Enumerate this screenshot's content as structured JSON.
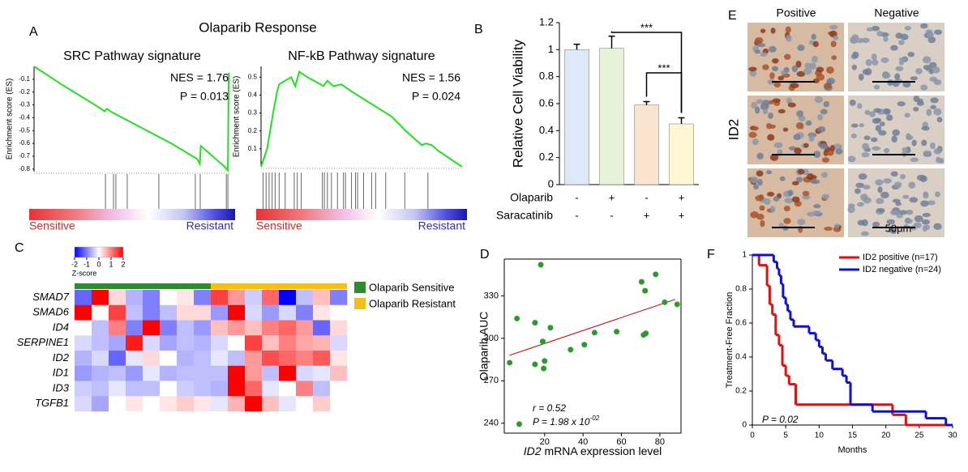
{
  "title": "Olaparib Response",
  "chart_data": [
    {
      "type": "gsea",
      "panel": "A",
      "title": "SRC Pathway signature",
      "ylabel": "Enrichment score (ES)",
      "x": [
        0,
        3,
        15,
        30,
        36,
        37,
        40,
        55,
        70,
        83,
        84.5,
        85,
        97,
        98.8,
        99.2
      ],
      "values": [
        0,
        -0.03,
        -0.15,
        -0.29,
        -0.35,
        -0.33,
        -0.36,
        -0.48,
        -0.6,
        -0.72,
        -0.76,
        -0.62,
        -0.78,
        -0.81,
        -0.05
      ],
      "xlim": [
        0,
        100
      ],
      "ylim": [
        -0.82,
        0
      ],
      "yticks": [
        -0.1,
        -0.2,
        -0.3,
        -0.4,
        -0.5,
        -0.6,
        -0.7,
        -0.8
      ],
      "hits": [
        36.4,
        40.5,
        41.7,
        47.5,
        63.6,
        82.2,
        84.7,
        98,
        98.8
      ],
      "color": "#22e022",
      "annotations": [
        "NES = 1.76",
        "P = 0.013"
      ],
      "gradient_labels": [
        "Sensitive",
        "Resistant"
      ]
    },
    {
      "type": "gsea",
      "title": "NF-kB Pathway signature",
      "ylabel": "Enrichment score (ES)",
      "x": [
        0,
        3,
        6,
        8,
        9,
        12,
        15,
        17,
        19,
        23,
        28,
        31,
        33,
        36,
        40,
        45,
        55,
        65,
        72,
        78,
        80,
        82,
        85,
        88,
        100
      ],
      "values": [
        0,
        0.1,
        0.3,
        0.42,
        0.46,
        0.48,
        0.5,
        0.45,
        0.53,
        0.5,
        0.47,
        0.45,
        0.48,
        0.45,
        0.46,
        0.42,
        0.35,
        0.28,
        0.2,
        0.14,
        0.12,
        0.13,
        0.12,
        0.09,
        0
      ],
      "xlim": [
        0,
        100
      ],
      "ylim": [
        0,
        0.56
      ],
      "yticks": [
        0.1,
        0.2,
        0.3,
        0.4,
        0.5
      ],
      "hits": [
        1,
        2.5,
        4,
        5.5,
        7,
        9,
        12,
        16.5,
        18,
        20,
        30.5,
        31.5,
        33,
        35,
        38,
        41,
        42,
        45,
        47,
        48,
        51,
        55,
        57,
        62,
        71.5,
        83
      ],
      "color": "#22e022",
      "annotations": [
        "NES = 1.56",
        "P = 0.024"
      ],
      "gradient_labels": [
        "Sensitive",
        "Resistant"
      ]
    },
    {
      "type": "bar",
      "panel": "B",
      "ylabel": "Relative Cell Viability",
      "values": [
        1,
        1.01,
        0.59,
        0.45
      ],
      "errors": [
        0.04,
        0.09,
        0.025,
        0.045
      ],
      "colors": [
        "#dde9f7",
        "#e6f3d6",
        "#fbe4cf",
        "#fdf8d2"
      ],
      "ylim": [
        0,
        1.2
      ],
      "yticks": [
        0,
        0.2,
        0.4,
        0.6,
        0.8,
        1,
        1.2
      ],
      "treatments": [
        {
          "name": "Olaparib",
          "levels": [
            "-",
            "+",
            "-",
            "+"
          ]
        },
        {
          "name": "Saracatinib",
          "levels": [
            "-",
            "-",
            "+",
            "+"
          ]
        }
      ],
      "significance": [
        {
          "from": 1,
          "to": 3,
          "label": "***"
        },
        {
          "from": 2,
          "to": 3,
          "label": "***"
        }
      ]
    },
    {
      "type": "heatmap",
      "panel": "C",
      "rows": [
        "SMAD7",
        "SMAD6",
        "ID4",
        "SERPINE1",
        "ID2",
        "ID1",
        "ID3",
        "TGFB1"
      ],
      "matrix": [
        [
          -1.2,
          2,
          0.3,
          -0.6,
          -1,
          0,
          0.2,
          -1,
          1.5,
          0.8,
          -0.4,
          1.2,
          -2,
          -0.5,
          0.5,
          -1
        ],
        [
          2,
          0,
          1.5,
          -0.5,
          -1,
          -0.5,
          0.3,
          0.3,
          -0.8,
          2,
          -0.3,
          -0.8,
          -0.3,
          -1,
          0.2,
          0
        ],
        [
          0,
          -0.5,
          1,
          -1,
          2.2,
          -1,
          -0.5,
          -0.8,
          0.5,
          0.8,
          0.5,
          1,
          1.2,
          0.8,
          -1.2,
          0.3
        ],
        [
          -0.3,
          -0.5,
          -0.7,
          1.8,
          -0.3,
          -0.7,
          -0.5,
          -0.6,
          -0.3,
          0,
          1.5,
          0.5,
          1,
          0.7,
          0.6,
          -0.3
        ],
        [
          -0.6,
          -0.3,
          -1.2,
          -0.2,
          0.3,
          0,
          -0.6,
          -0.5,
          -0.2,
          -0.5,
          0.8,
          1.4,
          1.2,
          1,
          1.3,
          0.2
        ],
        [
          -0.8,
          -0.6,
          -0.5,
          -0.8,
          -0.2,
          -0.6,
          -0.5,
          -0.5,
          -0.5,
          2,
          0.8,
          -0.5,
          2,
          -0.3,
          -0.2,
          0.5
        ],
        [
          -0.4,
          -0.5,
          -0.2,
          -0.5,
          -0.5,
          0,
          -0.4,
          -0.5,
          -0.6,
          2.2,
          1.2,
          -0.2,
          0,
          1,
          -0.5,
          0
        ],
        [
          -0.3,
          -0.7,
          0,
          0.2,
          0,
          0.2,
          0.4,
          0.2,
          -0.2,
          0.6,
          2.2,
          0.5,
          -0.2,
          0,
          0.4,
          0
        ]
      ],
      "zlim": [
        -2,
        2
      ],
      "zticks": [
        -2,
        -1,
        0,
        1,
        2
      ],
      "zlabel": "Z-score",
      "colors": [
        "#0000ff",
        "#ffffff",
        "#ff0000"
      ],
      "groups": [
        {
          "name": "Olaparib Sensitive",
          "color": "#2e8b2e",
          "count": 8
        },
        {
          "name": "Olaparib Resistant",
          "color": "#f5bf1a",
          "count": 8
        }
      ]
    },
    {
      "type": "scatter",
      "panel": "D",
      "ylabel": "Olaparib AUC",
      "xlabel_gene": "ID2",
      "xlabel": "mRNA expression level",
      "x": [
        1.8,
        5.6,
        6.8,
        15,
        18,
        15,
        19,
        19.5,
        20,
        23,
        33.5,
        40.7,
        46,
        57.5,
        71.5,
        72.7,
        70.5,
        72.3,
        77.8,
        82.5,
        89
      ],
      "y": [
        282.8,
        314,
        239.4,
        311,
        352,
        281.6,
        297.8,
        278.7,
        284,
        307.5,
        292,
        295.5,
        304,
        304.7,
        302.4,
        303.5,
        339.9,
        333.6,
        345.2,
        325.5,
        324
      ],
      "xlim": [
        -1,
        91
      ],
      "ylim": [
        233,
        356
      ],
      "xticks": [
        20,
        40,
        60,
        80
      ],
      "yticks": [
        240,
        270,
        300,
        330
      ],
      "trend": {
        "x": [
          1.8,
          88
        ],
        "y": [
          288,
          327.5
        ],
        "color": "#d00000"
      },
      "color": "#2e9a2e",
      "r_label": "r = 0.52",
      "p_label": "P = 1.98 x 10",
      "p_exponent": "-02"
    },
    {
      "type": "km",
      "panel": "F",
      "xlabel": "Months",
      "ylabel": "Treatment-Free Fraction",
      "annotation": "P = 0.02",
      "xlim": [
        0,
        30
      ],
      "ylim": [
        0,
        1
      ],
      "xticks": [
        0,
        5,
        10,
        15,
        20,
        25,
        30
      ],
      "yticks": [
        0,
        0.2,
        0.4,
        0.6,
        0.8,
        1
      ],
      "series": [
        {
          "name": "ID2 positive (n=17)",
          "color": "#e01010",
          "x": [
            0,
            1,
            2.2,
            2.6,
            3,
            3.5,
            4,
            4.5,
            5,
            5.5,
            6.5,
            21,
            23
          ],
          "values": [
            1,
            0.94,
            0.82,
            0.71,
            0.65,
            0.53,
            0.47,
            0.35,
            0.29,
            0.24,
            0.12,
            0.06,
            0
          ]
        },
        {
          "name": "ID2 negative (n=24)",
          "color": "#1010d0",
          "x": [
            0,
            3.2,
            3.7,
            4,
            4.3,
            4.6,
            5,
            5.3,
            5.7,
            6.2,
            8.5,
            9.5,
            10,
            10.5,
            11,
            12,
            13.5,
            14.1,
            14.7,
            18,
            26,
            29
          ],
          "values": [
            1,
            0.96,
            0.92,
            0.88,
            0.83,
            0.75,
            0.71,
            0.67,
            0.62,
            0.58,
            0.54,
            0.5,
            0.46,
            0.42,
            0.38,
            0.33,
            0.29,
            0.25,
            0.12,
            0.08,
            0.04,
            0
          ]
        }
      ]
    }
  ],
  "panel_e": {
    "panel": "E",
    "columns": [
      "Positive",
      "Negative"
    ],
    "row_label": "ID2",
    "scale_label": "50μm"
  }
}
